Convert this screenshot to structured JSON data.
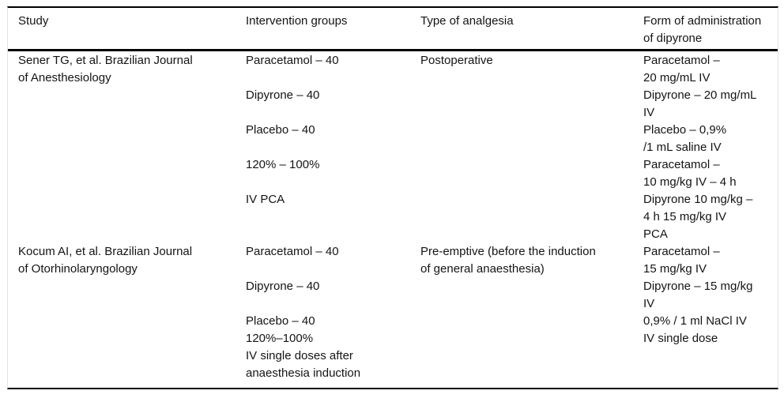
{
  "page": {
    "background": "#ffffff",
    "rule_color": "#000000",
    "frame_color": "#e4e4e4"
  },
  "table": {
    "headers": [
      "Study",
      "Intervention groups",
      "Type of analgesia",
      "Form of administration of dipyrone"
    ],
    "rows": [
      {
        "study_lines": [
          "Sener TG, et al. Brazilian Journal",
          "of Anesthesiology"
        ],
        "intervention_lines": [
          "Paracetamol – 40",
          "",
          "Dipyrone – 40",
          "",
          "Placebo – 40",
          "",
          "120% – 100%",
          "",
          "IV PCA"
        ],
        "analgesia_lines": [
          "Postoperative"
        ],
        "administration_lines": [
          "Paracetamol –",
          "20 mg/mL IV",
          "Dipyrone – 20 mg/mL",
          "IV",
          "Placebo – 0,9%",
          "/1 mL saline IV",
          "Paracetamol –",
          "10 mg/kg IV – 4 h",
          "Dipyrone 10 mg/kg –",
          "4 h 15 mg/kg IV",
          "PCA"
        ]
      },
      {
        "study_lines": [
          "Kocum AI, et al. Brazilian Journal",
          "of Otorhinolaryngology"
        ],
        "intervention_lines": [
          "Paracetamol – 40",
          "",
          "Dipyrone – 40",
          "",
          "Placebo – 40",
          "120%–100%",
          "IV single doses after",
          "anaesthesia induction"
        ],
        "analgesia_lines": [
          "Pre-emptive (before the induction",
          "of general anaesthesia)"
        ],
        "administration_lines": [
          "Paracetamol –",
          "15 mg/kg IV",
          "Dipyrone – 15 mg/kg",
          "IV",
          "0,9% / 1 ml NaCl IV",
          "IV single dose"
        ]
      }
    ]
  }
}
